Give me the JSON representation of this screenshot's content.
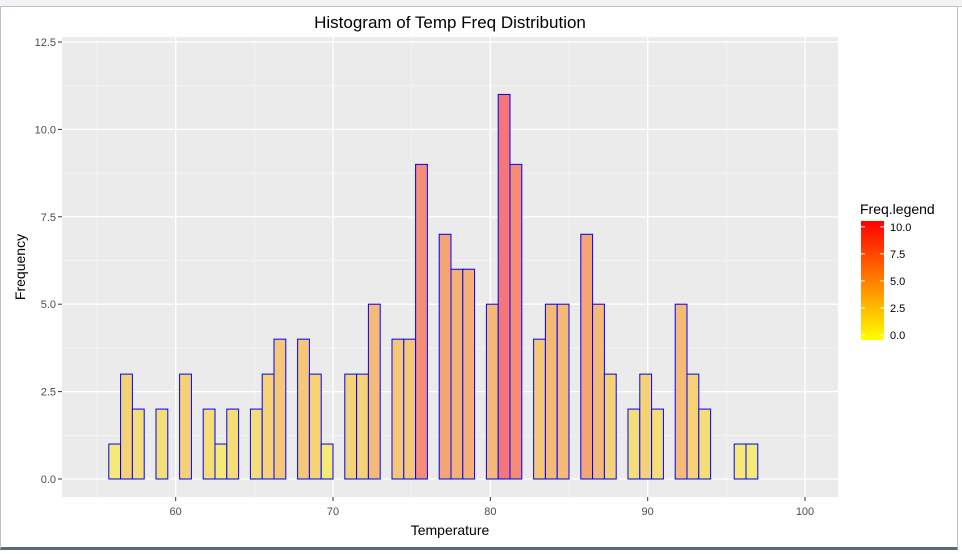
{
  "chart_data": {
    "type": "bar",
    "title": "Histogram of Temp Freq Distribution",
    "xlabel": "Temperature",
    "ylabel": "Frequency",
    "xlim": [
      55,
      100
    ],
    "ylim": [
      0,
      12.5
    ],
    "bin_start": 55,
    "bin_width": 0.75,
    "values": [
      0,
      1,
      3,
      2,
      0,
      2,
      0,
      3,
      0,
      2,
      1,
      2,
      0,
      2,
      3,
      4,
      0,
      4,
      3,
      1,
      0,
      3,
      3,
      5,
      0,
      4,
      4,
      9,
      0,
      7,
      6,
      6,
      0,
      5,
      11,
      9,
      0,
      4,
      5,
      5,
      0,
      7,
      5,
      3,
      0,
      2,
      3,
      2,
      0,
      5,
      3,
      2,
      0,
      0,
      1,
      1,
      0,
      0,
      0,
      0
    ],
    "x_ticks": [
      "60",
      "70",
      "80",
      "90",
      "100"
    ],
    "x_tick_values": [
      60,
      70,
      80,
      90,
      100
    ],
    "y_ticks": [
      "0.0",
      "2.5",
      "5.0",
      "7.5",
      "10.0",
      "12.5"
    ],
    "y_tick_values": [
      0,
      2.5,
      5,
      7.5,
      10,
      12.5
    ],
    "grid": true,
    "bar_outline_color": "#0000FF",
    "fill_low": "#FFFF00",
    "fill_high": "#FF0000",
    "fill_alpha": 0.5,
    "legend": {
      "title": "Freq.legend",
      "placement": "right",
      "ticks": [
        "0.0",
        "2.5",
        "5.0",
        "7.5",
        "10.0"
      ],
      "tick_values": [
        0,
        2.5,
        5,
        7.5,
        10
      ],
      "range": [
        0,
        11
      ]
    }
  }
}
